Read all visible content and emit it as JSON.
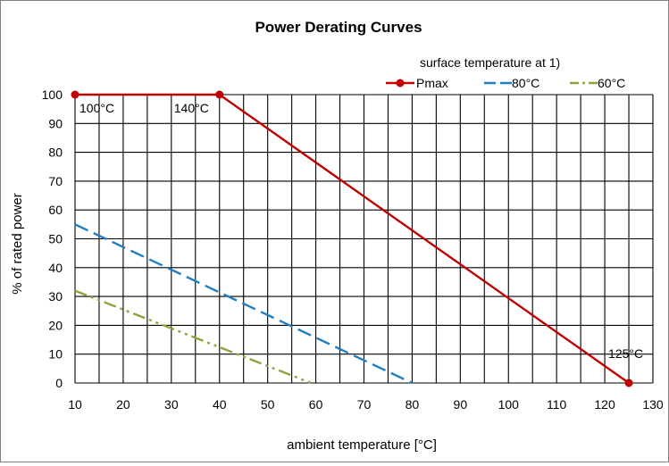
{
  "chart_data": {
    "type": "line",
    "title": "Power Derating Curves",
    "xlabel": "ambient temperature [°C]",
    "ylabel": "% of rated power",
    "xlim": [
      10,
      130
    ],
    "ylim": [
      0,
      100
    ],
    "xticks": [
      10,
      20,
      30,
      40,
      50,
      60,
      70,
      80,
      90,
      100,
      110,
      120,
      130
    ],
    "yticks": [
      0,
      10,
      20,
      30,
      40,
      50,
      60,
      70,
      80,
      90,
      100
    ],
    "x_grid_step": 5,
    "y_grid_step": 10,
    "grid": true,
    "legend_title": "surface temperature at 1)",
    "legend_position": "top-right",
    "series": [
      {
        "name": "Pmax",
        "style": "solid-markers",
        "color": "#c00000",
        "points": [
          [
            10,
            100
          ],
          [
            40,
            100
          ],
          [
            125,
            0
          ]
        ]
      },
      {
        "name": "80°C",
        "style": "dashed",
        "color": "#1f7fc4",
        "points": [
          [
            10,
            55
          ],
          [
            80,
            0
          ]
        ]
      },
      {
        "name": "60°C",
        "style": "dash-dot-dot",
        "color": "#8aa53c",
        "points": [
          [
            10,
            32
          ],
          [
            59,
            0
          ]
        ]
      }
    ],
    "annotations": [
      {
        "text": "100°C",
        "x": 10,
        "y": 100
      },
      {
        "text": "140°C",
        "x": 40,
        "y": 100
      },
      {
        "text": "125°C",
        "x": 125,
        "y": 0
      }
    ]
  }
}
